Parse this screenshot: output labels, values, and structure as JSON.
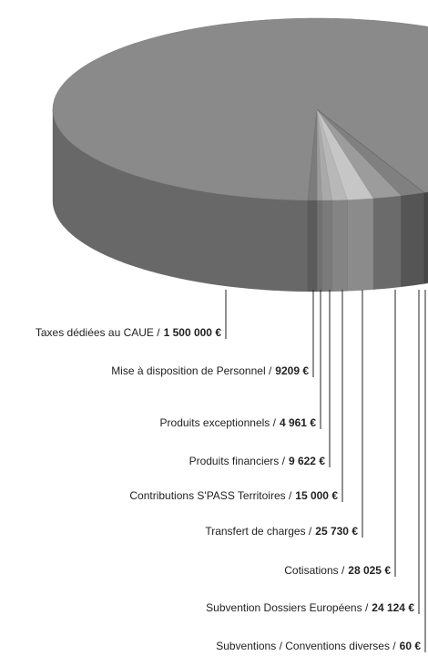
{
  "chart_data": {
    "type": "pie",
    "categories": [
      "Taxes dédiées au CAUE /",
      "Mise à disposition de Personnel /",
      "Produits exceptionnels /",
      "Produits financiers /",
      "Contributions S'PASS Territoires  /",
      "Transfert de charges  /",
      "Cotisations  /",
      "Subvention Dossiers Européens /",
      "Subventions / Conventions diverses /"
    ],
    "values": [
      1500000,
      9209,
      4961,
      9622,
      15000,
      25730,
      28025,
      24124,
      60
    ],
    "value_labels": [
      "1 500 000 €",
      "9209 €",
      "4 961 €",
      "9 622 €",
      "15 000 €",
      "25 730 €",
      "28 025 €",
      "24 124 €",
      "60 €"
    ],
    "colors": [
      "#8a8a8a",
      "#7c7c7c",
      "#9a9a9a",
      "#a9a9a9",
      "#b8b8b8",
      "#c6c6c6",
      "#9c9c9c",
      "#808080",
      "#6e6e6e"
    ]
  }
}
